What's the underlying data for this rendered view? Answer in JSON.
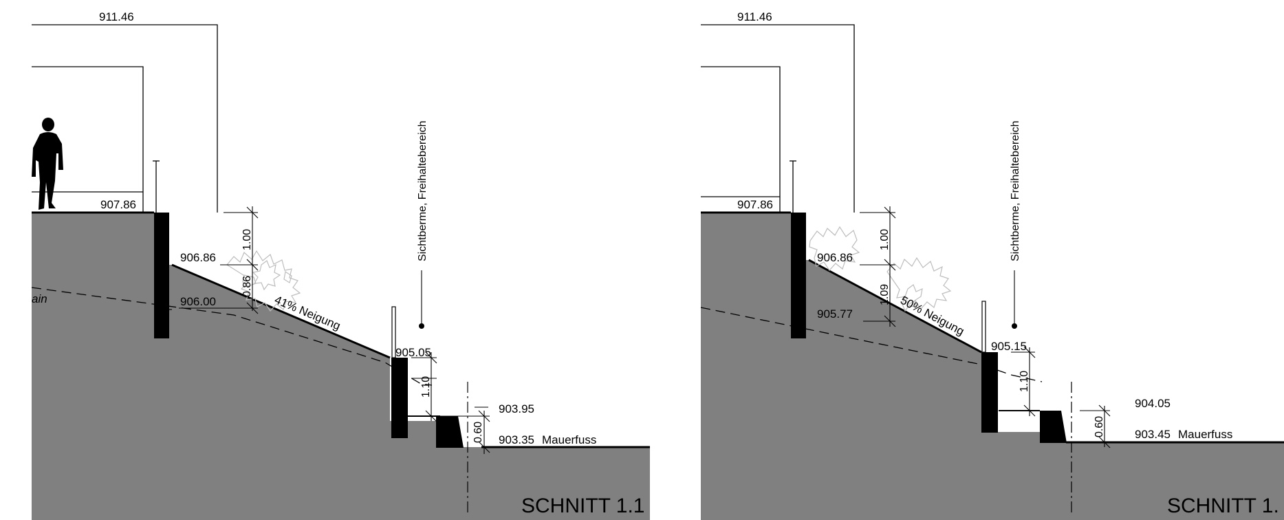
{
  "colors": {
    "ground": "#808080",
    "wall": "#000000",
    "line": "#000000",
    "bush": "#bdbdbd"
  },
  "left": {
    "title": "SCHNITT 1.1",
    "roof_level": "911.46",
    "floor_level": "907.86",
    "top_of_slope": "906.86",
    "terrain_level": "906.00",
    "slope_label": "41% Neigung",
    "berm_wall_top": "905.05",
    "step_level": "903.95",
    "foot_level": "903.35",
    "foot_label": "Mauerfuss",
    "dim_1": "1.00",
    "dim_2": "0.86",
    "dim_3": "1.10",
    "dim_4": "0.60",
    "berm_note": "Sichtberme, Freihaltebereich",
    "terrain_fragment": "ain"
  },
  "right": {
    "title": "SCHNITT 1.",
    "roof_level": "911.46",
    "floor_level": "907.86",
    "top_of_slope": "906.86",
    "terrain_level": "905.77",
    "slope_label": "50% Neigung",
    "berm_wall_top": "905.15",
    "step_level": "904.05",
    "foot_level": "903.45",
    "foot_label": "Mauerfuss",
    "dim_1": "1.00",
    "dim_2": "1.09",
    "dim_3": "1.10",
    "dim_4": "0.60",
    "berm_note": "Sichtberme, Freihaltebereich"
  }
}
